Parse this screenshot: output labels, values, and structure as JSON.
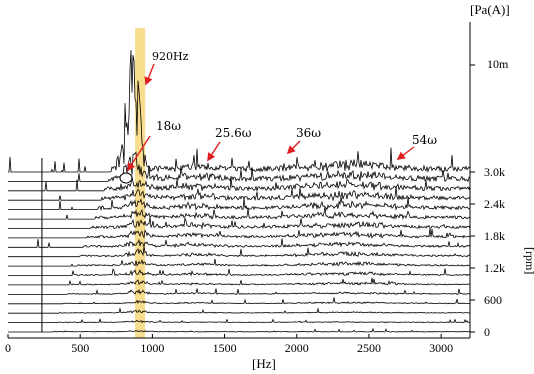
{
  "chart_data": {
    "type": "line",
    "subtype": "waterfall-spectrum",
    "xlabel": "[Hz]",
    "ylabel_right_top": "[Pa(A)]",
    "ylabel_right_side": "[rpm]",
    "xlim": [
      0,
      3200
    ],
    "x_ticks": [
      0,
      500,
      1000,
      1500,
      2000,
      2500,
      3000
    ],
    "x_tick_labels": [
      "0",
      "500",
      "1000",
      "1500",
      "2000",
      "2500",
      "3000"
    ],
    "rpm_ticks": [
      0,
      600,
      1200,
      1800,
      2400,
      3000
    ],
    "rpm_tick_labels": [
      "0",
      "600",
      "1.2k",
      "1.8k",
      "2.4k",
      "3.0k"
    ],
    "amplitude_tick_label": "10m",
    "trace_count": 18,
    "highlight_band_hz": [
      880,
      950
    ],
    "highlight_color": "#f7d77a",
    "annotations": [
      {
        "text": "920Hz",
        "x_hz": 920
      },
      {
        "text": "18ω",
        "x_hz": 830
      },
      {
        "text": "25.6ω",
        "x_hz": 1380
      },
      {
        "text": "36ω",
        "x_hz": 1900
      },
      {
        "text": "54ω",
        "x_hz": 2690
      }
    ],
    "arrow_color": "#e02020",
    "line_color": "#000000"
  }
}
